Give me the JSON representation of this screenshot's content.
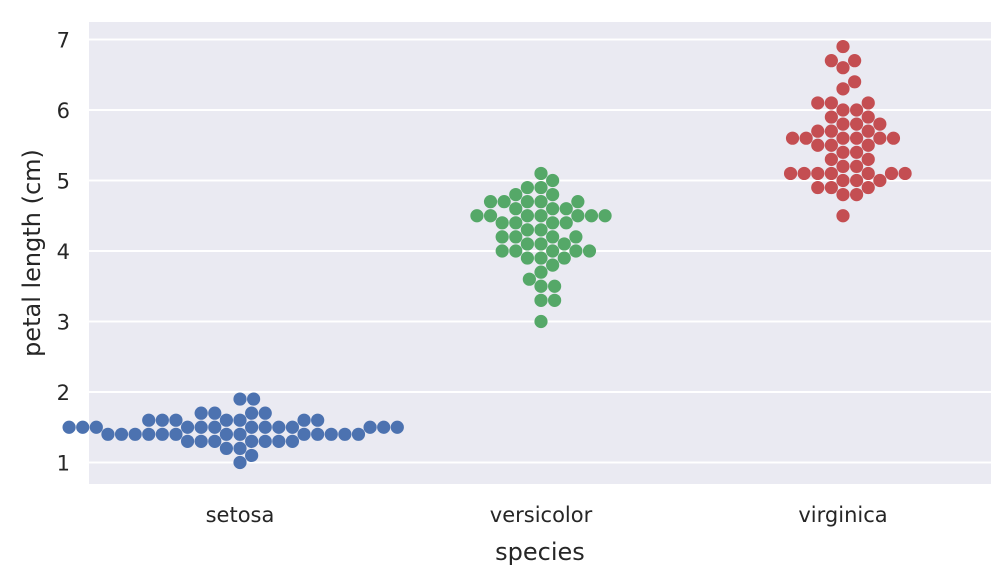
{
  "chart_data": {
    "type": "scatter",
    "kind": "swarm",
    "xlabel": "species",
    "ylabel": "petal length (cm)",
    "categories": [
      "setosa",
      "versicolor",
      "virginica"
    ],
    "yticks": [
      1,
      2,
      3,
      4,
      5,
      6,
      7
    ],
    "ylim": [
      0.7,
      7.2
    ],
    "grid": true,
    "background_color": "#eaeaf2",
    "series": [
      {
        "category": "setosa",
        "color": "#4c72b0",
        "values": [
          1.4,
          1.4,
          1.3,
          1.5,
          1.4,
          1.7,
          1.4,
          1.5,
          1.4,
          1.5,
          1.5,
          1.6,
          1.4,
          1.1,
          1.2,
          1.5,
          1.3,
          1.4,
          1.7,
          1.5,
          1.7,
          1.5,
          1.0,
          1.7,
          1.9,
          1.6,
          1.6,
          1.5,
          1.4,
          1.6,
          1.6,
          1.5,
          1.5,
          1.4,
          1.5,
          1.2,
          1.3,
          1.4,
          1.3,
          1.5,
          1.3,
          1.3,
          1.3,
          1.6,
          1.9,
          1.4,
          1.6,
          1.4,
          1.5,
          1.4
        ]
      },
      {
        "category": "versicolor",
        "color": "#55a868",
        "values": [
          4.7,
          4.5,
          4.9,
          4.0,
          4.6,
          4.5,
          4.7,
          3.3,
          4.6,
          3.9,
          3.5,
          4.2,
          4.0,
          4.7,
          3.6,
          4.4,
          4.5,
          4.1,
          4.5,
          3.9,
          4.8,
          4.0,
          4.9,
          4.7,
          4.3,
          4.4,
          4.8,
          5.0,
          4.5,
          3.5,
          3.8,
          3.7,
          3.9,
          5.1,
          4.5,
          4.5,
          4.7,
          4.4,
          4.1,
          4.0,
          4.4,
          4.6,
          4.0,
          3.3,
          4.2,
          4.2,
          4.2,
          4.3,
          3.0,
          4.1
        ]
      },
      {
        "category": "virginica",
        "color": "#c44e52",
        "values": [
          6.0,
          5.1,
          5.9,
          5.6,
          5.8,
          6.6,
          4.5,
          6.3,
          5.8,
          6.1,
          5.1,
          5.3,
          5.5,
          5.0,
          5.1,
          5.3,
          5.5,
          6.7,
          6.9,
          5.0,
          5.7,
          4.9,
          6.7,
          4.9,
          5.7,
          6.0,
          4.8,
          4.9,
          5.6,
          5.8,
          6.1,
          6.4,
          5.6,
          5.1,
          5.6,
          6.1,
          5.6,
          5.5,
          4.8,
          5.4,
          5.6,
          5.1,
          5.1,
          5.9,
          5.7,
          5.2,
          5.0,
          5.2,
          5.4,
          5.1
        ]
      }
    ]
  }
}
